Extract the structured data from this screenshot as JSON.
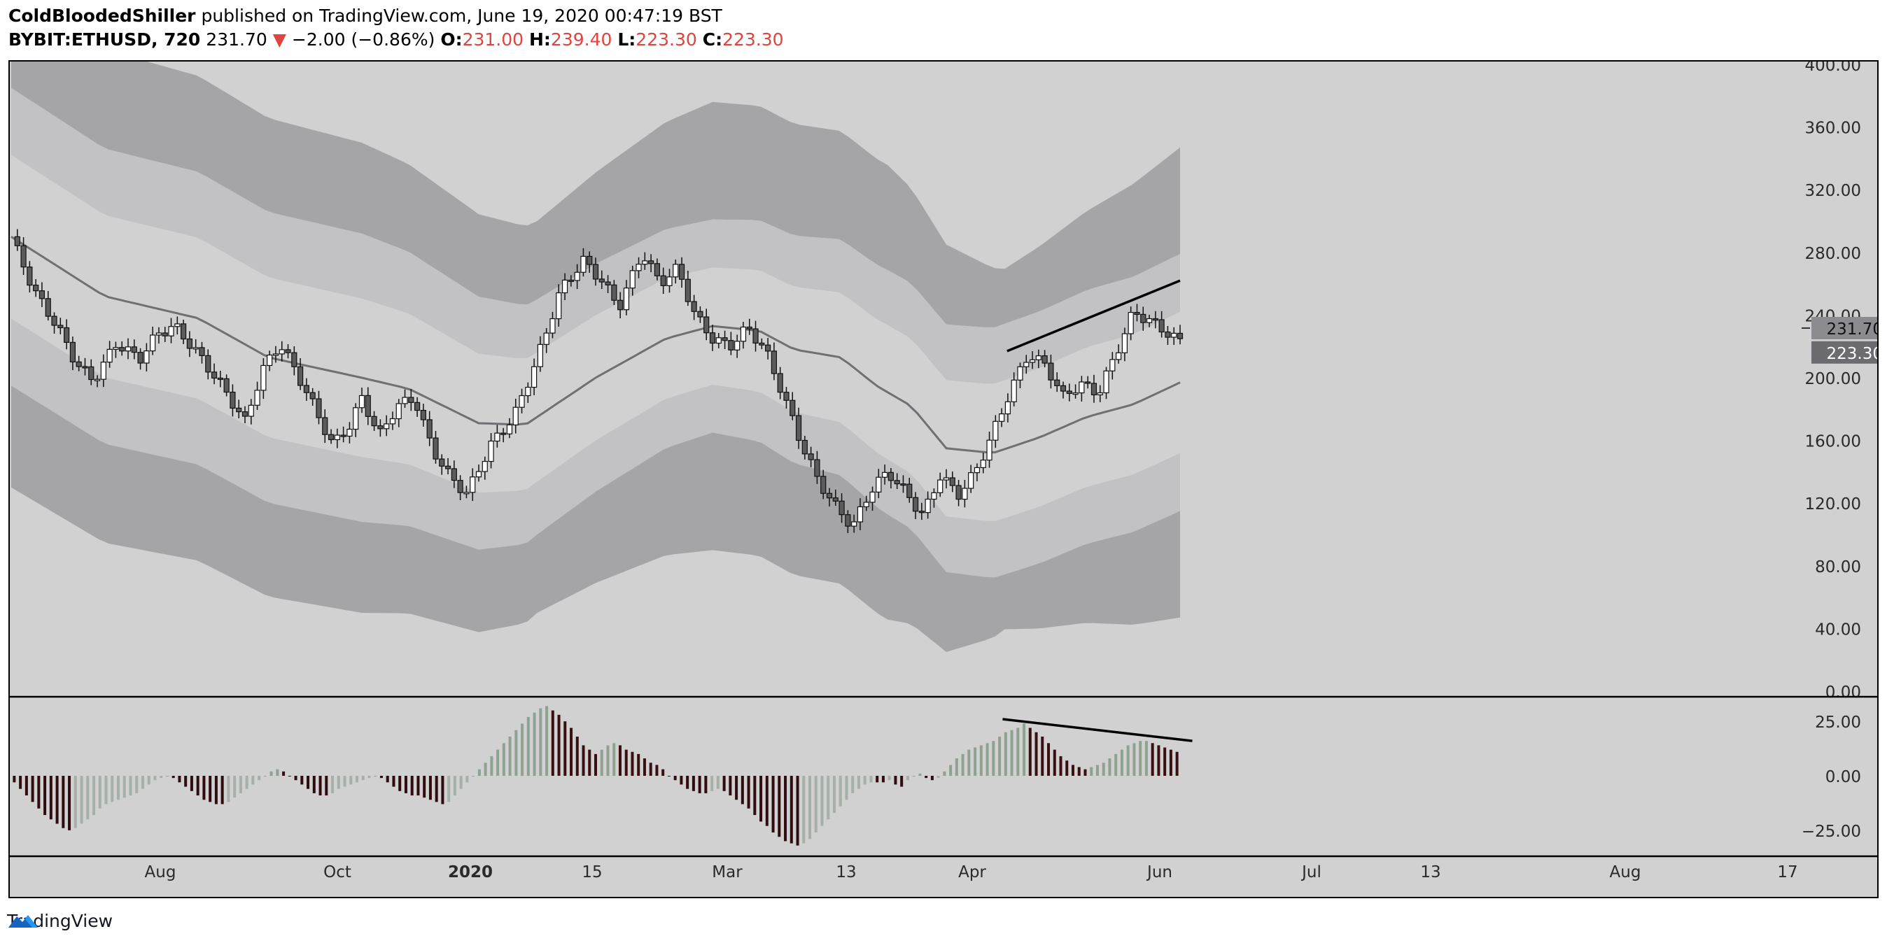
{
  "header": {
    "author": "ColdBloodedShiller",
    "published_text": "published on TradingView.com, June 19, 2020 00:47:19 BST",
    "symbol": "BYBIT:ETHUSD, 720",
    "last": "231.70",
    "change_arrow": "▼",
    "change": "−2.00 (−0.86%)",
    "o_label": "O:",
    "o_value": "231.00",
    "h_label": "H:",
    "h_value": "239.40",
    "l_label": "L:",
    "l_value": "223.30",
    "c_label": "C:",
    "c_value": "223.30"
  },
  "footer": {
    "brand": "TradingView",
    "logo_icon": "tradingview-logo-icon"
  },
  "colors": {
    "background": "#d1d1d1",
    "outer_band": "#a5a5a7",
    "inner_band": "#c2c1c4",
    "midline": "#6f6f74",
    "candle_up": "#ffffff",
    "candle_down": "#5b5b5b",
    "hist_pos_rising": "#8fa292",
    "hist_pos_falling": "#3a0f12",
    "hist_neg_falling": "#2e0c0f",
    "hist_neg_rising": "#a6b0a8",
    "last_price_bg": "#8c8c90",
    "trend_line": "#000000"
  },
  "chart_data": [
    {
      "type": "candlestick",
      "pane": "price",
      "ylim": [
        0,
        400
      ],
      "yticks": [
        "400.00",
        "360.00",
        "320.00",
        "280.00",
        "240.00",
        "200.00",
        "160.00",
        "120.00",
        "80.00",
        "40.00",
        "0.00"
      ],
      "xticks": [
        "Aug",
        "Oct",
        "2020",
        "15",
        "Mar",
        "13",
        "Apr",
        "Jun",
        "Jul",
        "13",
        "Aug",
        "17"
      ],
      "last_price_label": "231.70",
      "close_label": "223.30",
      "close_path": [
        {
          "t": 0.0,
          "v": 290
        },
        {
          "t": 0.02,
          "v": 255
        },
        {
          "t": 0.04,
          "v": 232
        },
        {
          "t": 0.055,
          "v": 210
        },
        {
          "t": 0.07,
          "v": 198
        },
        {
          "t": 0.09,
          "v": 222
        },
        {
          "t": 0.11,
          "v": 212
        },
        {
          "t": 0.125,
          "v": 228
        },
        {
          "t": 0.14,
          "v": 233
        },
        {
          "t": 0.16,
          "v": 215
        },
        {
          "t": 0.18,
          "v": 195
        },
        {
          "t": 0.2,
          "v": 172
        },
        {
          "t": 0.215,
          "v": 205
        },
        {
          "t": 0.23,
          "v": 222
        },
        {
          "t": 0.245,
          "v": 202
        },
        {
          "t": 0.26,
          "v": 180
        },
        {
          "t": 0.275,
          "v": 157
        },
        {
          "t": 0.29,
          "v": 170
        },
        {
          "t": 0.3,
          "v": 187
        },
        {
          "t": 0.315,
          "v": 163
        },
        {
          "t": 0.33,
          "v": 182
        },
        {
          "t": 0.345,
          "v": 187
        },
        {
          "t": 0.36,
          "v": 155
        },
        {
          "t": 0.375,
          "v": 137
        },
        {
          "t": 0.39,
          "v": 126
        },
        {
          "t": 0.41,
          "v": 157
        },
        {
          "t": 0.43,
          "v": 175
        },
        {
          "t": 0.45,
          "v": 212
        },
        {
          "t": 0.47,
          "v": 256
        },
        {
          "t": 0.49,
          "v": 275
        },
        {
          "t": 0.505,
          "v": 262
        },
        {
          "t": 0.52,
          "v": 245
        },
        {
          "t": 0.54,
          "v": 280
        },
        {
          "t": 0.555,
          "v": 260
        },
        {
          "t": 0.57,
          "v": 270
        },
        {
          "t": 0.585,
          "v": 240
        },
        {
          "t": 0.6,
          "v": 225
        },
        {
          "t": 0.615,
          "v": 220
        },
        {
          "t": 0.63,
          "v": 232
        },
        {
          "t": 0.645,
          "v": 218
        },
        {
          "t": 0.66,
          "v": 190
        },
        {
          "t": 0.675,
          "v": 160
        },
        {
          "t": 0.69,
          "v": 135
        },
        {
          "t": 0.705,
          "v": 118
        },
        {
          "t": 0.72,
          "v": 105
        },
        {
          "t": 0.735,
          "v": 128
        },
        {
          "t": 0.75,
          "v": 140
        },
        {
          "t": 0.765,
          "v": 127
        },
        {
          "t": 0.78,
          "v": 112
        },
        {
          "t": 0.795,
          "v": 138
        },
        {
          "t": 0.81,
          "v": 125
        },
        {
          "t": 0.825,
          "v": 140
        },
        {
          "t": 0.84,
          "v": 165
        },
        {
          "t": 0.855,
          "v": 192
        },
        {
          "t": 0.87,
          "v": 215
        },
        {
          "t": 0.885,
          "v": 208
        },
        {
          "t": 0.9,
          "v": 188
        },
        {
          "t": 0.915,
          "v": 196
        },
        {
          "t": 0.93,
          "v": 190
        },
        {
          "t": 0.945,
          "v": 215
        },
        {
          "t": 0.96,
          "v": 242
        },
        {
          "t": 0.975,
          "v": 236
        },
        {
          "t": 1.0,
          "v": 223
        }
      ],
      "band_center": [
        {
          "t": 0.0,
          "v": 290
        },
        {
          "t": 0.08,
          "v": 252
        },
        {
          "t": 0.16,
          "v": 238
        },
        {
          "t": 0.22,
          "v": 213
        },
        {
          "t": 0.3,
          "v": 200
        },
        {
          "t": 0.34,
          "v": 193
        },
        {
          "t": 0.4,
          "v": 171
        },
        {
          "t": 0.44,
          "v": 170
        },
        {
          "t": 0.5,
          "v": 200
        },
        {
          "t": 0.56,
          "v": 225
        },
        {
          "t": 0.6,
          "v": 233
        },
        {
          "t": 0.64,
          "v": 230
        },
        {
          "t": 0.67,
          "v": 218
        },
        {
          "t": 0.71,
          "v": 213
        },
        {
          "t": 0.74,
          "v": 195
        },
        {
          "t": 0.77,
          "v": 182
        },
        {
          "t": 0.8,
          "v": 155
        },
        {
          "t": 0.84,
          "v": 152
        },
        {
          "t": 0.88,
          "v": 162
        },
        {
          "t": 0.92,
          "v": 175
        },
        {
          "t": 0.96,
          "v": 183
        },
        {
          "t": 1.0,
          "v": 197
        }
      ],
      "band_inner_halfwidth": [
        {
          "t": 0.0,
          "v": 95
        },
        {
          "t": 0.3,
          "v": 92
        },
        {
          "t": 0.45,
          "v": 75
        },
        {
          "t": 0.6,
          "v": 68
        },
        {
          "t": 0.75,
          "v": 78
        },
        {
          "t": 0.85,
          "v": 80
        },
        {
          "t": 1.0,
          "v": 82
        }
      ],
      "band_outer_halfwidth": [
        {
          "t": 0.0,
          "v": 160
        },
        {
          "t": 0.3,
          "v": 150
        },
        {
          "t": 0.45,
          "v": 125
        },
        {
          "t": 0.6,
          "v": 143
        },
        {
          "t": 0.75,
          "v": 145
        },
        {
          "t": 0.85,
          "v": 115
        },
        {
          "t": 1.0,
          "v": 150
        }
      ],
      "trend_line": [
        {
          "t": 0.852,
          "v": 217
        },
        {
          "t": 1.0,
          "v": 262
        }
      ]
    },
    {
      "type": "histogram",
      "pane": "oscillator",
      "ylim": [
        -35,
        35
      ],
      "yticks": [
        "25.00",
        "0.00",
        "−25.00"
      ],
      "values": [
        -3,
        -6,
        -9,
        -12,
        -15,
        -18,
        -20,
        -22,
        -24,
        -25,
        -24,
        -22,
        -20,
        -18,
        -15,
        -13,
        -12,
        -11,
        -10,
        -9,
        -8,
        -6,
        -4,
        -2,
        -1,
        0,
        -1,
        -3,
        -5,
        -7,
        -9,
        -11,
        -12,
        -13,
        -13,
        -12,
        -10,
        -8,
        -6,
        -4,
        -2,
        0,
        2,
        3,
        2,
        0,
        -2,
        -4,
        -6,
        -8,
        -9,
        -9,
        -8,
        -6,
        -5,
        -4,
        -3,
        -2,
        -1,
        0,
        -1,
        -3,
        -5,
        -7,
        -8,
        -9,
        -9,
        -10,
        -11,
        -12,
        -13,
        -12,
        -9,
        -6,
        -3,
        0,
        3,
        6,
        9,
        12,
        15,
        18,
        21,
        24,
        27,
        29,
        31,
        32,
        30,
        28,
        25,
        22,
        18,
        14,
        12,
        10,
        12,
        14,
        15,
        14,
        12,
        11,
        10,
        8,
        6,
        5,
        3,
        0,
        -2,
        -4,
        -6,
        -7,
        -8,
        -8,
        -7,
        -6,
        -7,
        -9,
        -11,
        -13,
        -15,
        -18,
        -21,
        -23,
        -26,
        -28,
        -30,
        -31,
        -32,
        -31,
        -29,
        -26,
        -23,
        -20,
        -17,
        -14,
        -11,
        -8,
        -6,
        -4,
        -3,
        -3,
        -3,
        -2,
        -4,
        -5,
        -2,
        0,
        1,
        -1,
        -2,
        -1,
        2,
        5,
        8,
        10,
        12,
        13,
        14,
        15,
        16,
        18,
        20,
        21,
        22,
        24,
        22,
        20,
        18,
        15,
        12,
        9,
        7,
        5,
        4,
        3,
        4,
        5,
        6,
        8,
        10,
        12,
        14,
        15,
        16,
        16,
        15,
        14,
        13,
        12,
        11
      ]
    }
  ]
}
